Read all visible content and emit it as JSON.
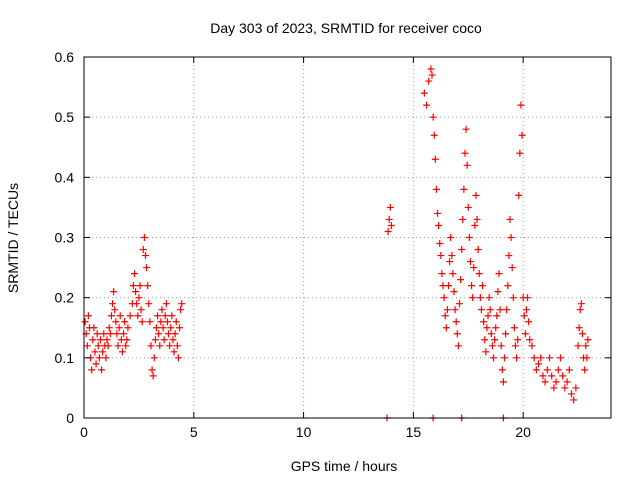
{
  "chart_data": {
    "type": "scatter",
    "title": "Day 303 of 2023, SRMTID for receiver coco",
    "xlabel": "GPS time / hours",
    "ylabel": "SRMTID / TECUs",
    "xlim": [
      0,
      24
    ],
    "ylim": [
      0,
      0.6
    ],
    "x_ticks": [
      0,
      5,
      10,
      15,
      20
    ],
    "x_tick_labels": [
      "0",
      "5",
      "10",
      "15",
      "20"
    ],
    "y_ticks": [
      0,
      0.1,
      0.2,
      0.3,
      0.4,
      0.5,
      0.6
    ],
    "y_tick_labels": [
      "0",
      "0.1",
      "0.2",
      "0.3",
      "0.4",
      "0.5",
      "0.6"
    ],
    "grid": true,
    "marker": "plus",
    "series": [
      {
        "name": "SRMTID",
        "color": "#ff0000",
        "points": [
          [
            0.05,
            0.16
          ],
          [
            0.1,
            0.14
          ],
          [
            0.15,
            0.12
          ],
          [
            0.2,
            0.17
          ],
          [
            0.25,
            0.15
          ],
          [
            0.3,
            0.1
          ],
          [
            0.35,
            0.08
          ],
          [
            0.4,
            0.13
          ],
          [
            0.45,
            0.15
          ],
          [
            0.5,
            0.11
          ],
          [
            0.55,
            0.09
          ],
          [
            0.6,
            0.14
          ],
          [
            0.65,
            0.12
          ],
          [
            0.7,
            0.1
          ],
          [
            0.75,
            0.13
          ],
          [
            0.8,
            0.08
          ],
          [
            0.85,
            0.11
          ],
          [
            0.9,
            0.14
          ],
          [
            0.95,
            0.12
          ],
          [
            1.0,
            0.1
          ],
          [
            1.05,
            0.13
          ],
          [
            1.1,
            0.12
          ],
          [
            1.15,
            0.15
          ],
          [
            1.2,
            0.14
          ],
          [
            1.25,
            0.17
          ],
          [
            1.3,
            0.19
          ],
          [
            1.35,
            0.21
          ],
          [
            1.4,
            0.18
          ],
          [
            1.45,
            0.16
          ],
          [
            1.5,
            0.14
          ],
          [
            1.55,
            0.12
          ],
          [
            1.6,
            0.15
          ],
          [
            1.65,
            0.17
          ],
          [
            1.7,
            0.13
          ],
          [
            1.75,
            0.11
          ],
          [
            1.8,
            0.14
          ],
          [
            1.85,
            0.16
          ],
          [
            1.9,
            0.12
          ],
          [
            1.95,
            0.13
          ],
          [
            2.0,
            0.15
          ],
          [
            2.1,
            0.17
          ],
          [
            2.2,
            0.19
          ],
          [
            2.25,
            0.22
          ],
          [
            2.3,
            0.24
          ],
          [
            2.35,
            0.21
          ],
          [
            2.4,
            0.19
          ],
          [
            2.45,
            0.17
          ],
          [
            2.5,
            0.2
          ],
          [
            2.55,
            0.22
          ],
          [
            2.6,
            0.18
          ],
          [
            2.65,
            0.16
          ],
          [
            2.7,
            0.28
          ],
          [
            2.75,
            0.3
          ],
          [
            2.8,
            0.27
          ],
          [
            2.85,
            0.25
          ],
          [
            2.9,
            0.22
          ],
          [
            2.95,
            0.19
          ],
          [
            3.0,
            0.16
          ],
          [
            3.05,
            0.12
          ],
          [
            3.1,
            0.08
          ],
          [
            3.15,
            0.07
          ],
          [
            3.2,
            0.1
          ],
          [
            3.25,
            0.13
          ],
          [
            3.3,
            0.15
          ],
          [
            3.35,
            0.17
          ],
          [
            3.4,
            0.14
          ],
          [
            3.45,
            0.12
          ],
          [
            3.5,
            0.16
          ],
          [
            3.55,
            0.18
          ],
          [
            3.6,
            0.15
          ],
          [
            3.65,
            0.13
          ],
          [
            3.7,
            0.17
          ],
          [
            3.75,
            0.19
          ],
          [
            3.8,
            0.16
          ],
          [
            3.85,
            0.14
          ],
          [
            3.9,
            0.12
          ],
          [
            3.95,
            0.15
          ],
          [
            4.0,
            0.17
          ],
          [
            4.05,
            0.13
          ],
          [
            4.1,
            0.11
          ],
          [
            4.15,
            0.14
          ],
          [
            4.2,
            0.16
          ],
          [
            4.25,
            0.12
          ],
          [
            4.3,
            0.1
          ],
          [
            4.35,
            0.15
          ],
          [
            4.4,
            0.18
          ],
          [
            4.45,
            0.19
          ],
          [
            13.85,
            0.31
          ],
          [
            13.9,
            0.33
          ],
          [
            13.95,
            0.35
          ],
          [
            14.0,
            0.32
          ],
          [
            13.8,
            0.0
          ],
          [
            15.9,
            0.0
          ],
          [
            17.2,
            0.0
          ],
          [
            19.1,
            0.0
          ],
          [
            15.5,
            0.54
          ],
          [
            15.6,
            0.52
          ],
          [
            15.7,
            0.56
          ],
          [
            15.8,
            0.58
          ],
          [
            15.85,
            0.57
          ],
          [
            15.9,
            0.5
          ],
          [
            15.95,
            0.47
          ],
          [
            16.0,
            0.43
          ],
          [
            16.05,
            0.38
          ],
          [
            16.1,
            0.34
          ],
          [
            16.15,
            0.32
          ],
          [
            16.2,
            0.29
          ],
          [
            16.25,
            0.27
          ],
          [
            16.3,
            0.24
          ],
          [
            16.35,
            0.22
          ],
          [
            16.4,
            0.2
          ],
          [
            16.45,
            0.17
          ],
          [
            16.5,
            0.15
          ],
          [
            16.55,
            0.18
          ],
          [
            16.6,
            0.22
          ],
          [
            16.65,
            0.26
          ],
          [
            16.7,
            0.3
          ],
          [
            16.75,
            0.27
          ],
          [
            16.8,
            0.24
          ],
          [
            16.85,
            0.21
          ],
          [
            16.9,
            0.18
          ],
          [
            16.95,
            0.16
          ],
          [
            17.0,
            0.14
          ],
          [
            17.05,
            0.12
          ],
          [
            17.1,
            0.19
          ],
          [
            17.15,
            0.23
          ],
          [
            17.2,
            0.28
          ],
          [
            17.25,
            0.33
          ],
          [
            17.3,
            0.38
          ],
          [
            17.35,
            0.44
          ],
          [
            17.4,
            0.48
          ],
          [
            17.45,
            0.42
          ],
          [
            17.5,
            0.35
          ],
          [
            17.55,
            0.3
          ],
          [
            17.6,
            0.26
          ],
          [
            17.65,
            0.22
          ],
          [
            17.7,
            0.2
          ],
          [
            17.75,
            0.25
          ],
          [
            17.8,
            0.32
          ],
          [
            17.85,
            0.37
          ],
          [
            17.9,
            0.33
          ],
          [
            17.95,
            0.28
          ],
          [
            18.0,
            0.24
          ],
          [
            18.05,
            0.2
          ],
          [
            18.1,
            0.18
          ],
          [
            18.15,
            0.22
          ],
          [
            18.2,
            0.16
          ],
          [
            18.25,
            0.13
          ],
          [
            18.3,
            0.11
          ],
          [
            18.35,
            0.15
          ],
          [
            18.4,
            0.17
          ],
          [
            18.45,
            0.2
          ],
          [
            18.5,
            0.18
          ],
          [
            18.55,
            0.14
          ],
          [
            18.6,
            0.12
          ],
          [
            18.65,
            0.1
          ],
          [
            18.7,
            0.13
          ],
          [
            18.75,
            0.15
          ],
          [
            18.8,
            0.17
          ],
          [
            18.85,
            0.21
          ],
          [
            18.9,
            0.24
          ],
          [
            18.95,
            0.18
          ],
          [
            19.0,
            0.12
          ],
          [
            19.05,
            0.08
          ],
          [
            19.1,
            0.06
          ],
          [
            19.15,
            0.1
          ],
          [
            19.2,
            0.14
          ],
          [
            19.25,
            0.18
          ],
          [
            19.3,
            0.22
          ],
          [
            19.35,
            0.27
          ],
          [
            19.4,
            0.33
          ],
          [
            19.45,
            0.3
          ],
          [
            19.5,
            0.25
          ],
          [
            19.55,
            0.2
          ],
          [
            19.6,
            0.15
          ],
          [
            19.65,
            0.12
          ],
          [
            19.7,
            0.1
          ],
          [
            19.75,
            0.13
          ],
          [
            19.8,
            0.37
          ],
          [
            19.85,
            0.44
          ],
          [
            19.9,
            0.52
          ],
          [
            19.95,
            0.47
          ],
          [
            20.0,
            0.2
          ],
          [
            20.05,
            0.17
          ],
          [
            20.1,
            0.14
          ],
          [
            20.15,
            0.18
          ],
          [
            20.2,
            0.2
          ],
          [
            20.25,
            0.16
          ],
          [
            20.3,
            0.13
          ],
          [
            20.4,
            0.12
          ],
          [
            20.5,
            0.1
          ],
          [
            20.6,
            0.08
          ],
          [
            20.7,
            0.09
          ],
          [
            20.8,
            0.1
          ],
          [
            20.9,
            0.07
          ],
          [
            21.0,
            0.06
          ],
          [
            21.1,
            0.08
          ],
          [
            21.2,
            0.1
          ],
          [
            21.3,
            0.07
          ],
          [
            21.4,
            0.05
          ],
          [
            21.5,
            0.06
          ],
          [
            21.6,
            0.08
          ],
          [
            21.7,
            0.1
          ],
          [
            21.8,
            0.07
          ],
          [
            21.9,
            0.05
          ],
          [
            22.0,
            0.06
          ],
          [
            22.1,
            0.08
          ],
          [
            22.2,
            0.04
          ],
          [
            22.3,
            0.03
          ],
          [
            22.4,
            0.05
          ],
          [
            22.5,
            0.12
          ],
          [
            22.55,
            0.15
          ],
          [
            22.6,
            0.18
          ],
          [
            22.65,
            0.19
          ],
          [
            22.7,
            0.14
          ],
          [
            22.75,
            0.1
          ],
          [
            22.8,
            0.08
          ],
          [
            22.85,
            0.12
          ],
          [
            22.9,
            0.1
          ],
          [
            22.95,
            0.13
          ]
        ]
      }
    ]
  }
}
